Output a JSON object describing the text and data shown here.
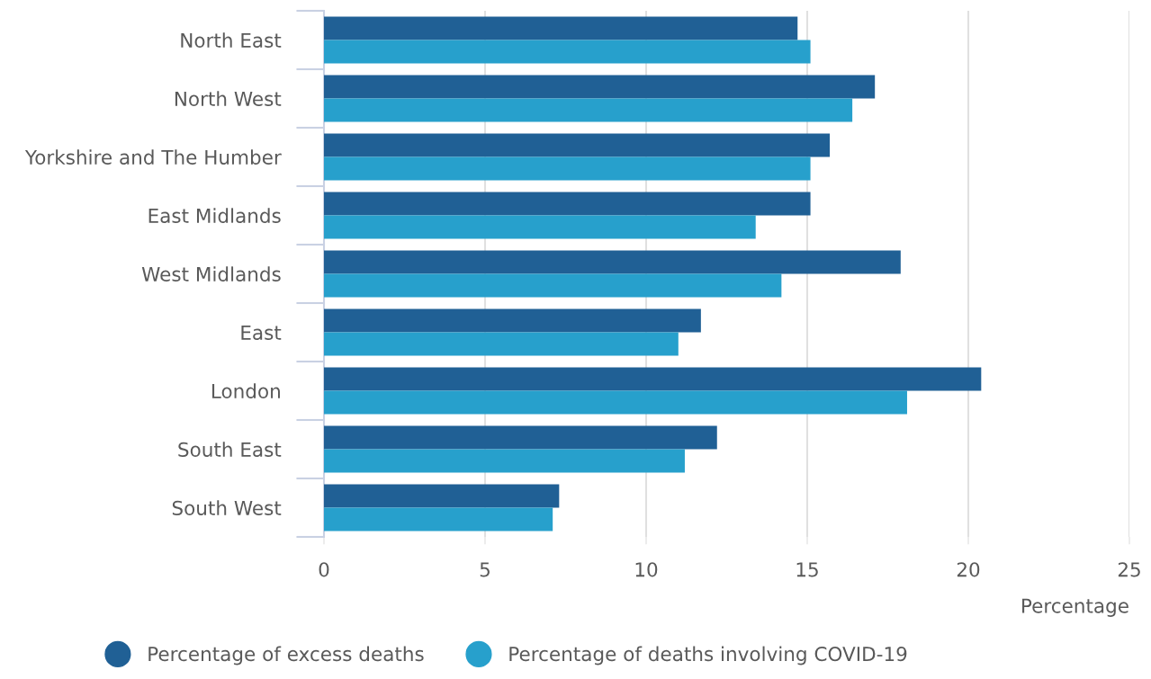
{
  "chart_data": {
    "type": "bar",
    "orientation": "horizontal",
    "categories": [
      "North East",
      "North West",
      "Yorkshire and The Humber",
      "East Midlands",
      "West Midlands",
      "East",
      "London",
      "South East",
      "South West"
    ],
    "series": [
      {
        "name": "Percentage of excess deaths",
        "color": "#206095",
        "values": [
          14.7,
          17.1,
          15.7,
          15.1,
          17.9,
          11.7,
          20.4,
          12.2,
          7.3
        ]
      },
      {
        "name": "Percentage of deaths involving COVID-19",
        "color": "#27a0cc",
        "values": [
          15.1,
          16.4,
          15.1,
          13.4,
          14.2,
          11.0,
          18.1,
          11.2,
          7.1
        ]
      }
    ],
    "xlabel": "Percentage",
    "xlim": [
      0,
      25
    ],
    "xticks": [
      0,
      5,
      10,
      15,
      20,
      25
    ],
    "grid": "x",
    "legend": "bottom"
  }
}
